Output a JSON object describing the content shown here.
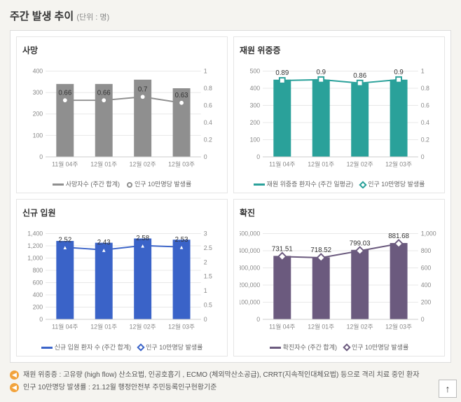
{
  "page": {
    "title": "주간 발생 추이",
    "unit": "(단위 : 명)"
  },
  "axis": {
    "categories": [
      "11월 04주",
      "12월 01주",
      "12월 02주",
      "12월 03주"
    ],
    "grid_color": "#e8e8e8",
    "axis_color": "#cccccc",
    "tick_font_size": 9,
    "tick_color": "#888888"
  },
  "panels": [
    {
      "key": "death",
      "title": "사망",
      "type": "bar+line",
      "bar_series_label": "사망자수 (주간 합계)",
      "line_series_label": "인구 10만명당 발생률",
      "categories": [
        "11월 04주",
        "12월 01주",
        "12월 02주",
        "12월 03주"
      ],
      "bar_values": [
        340,
        340,
        360,
        320
      ],
      "line_values": [
        0.66,
        0.66,
        0.7,
        0.63
      ],
      "line_labels": [
        "0.66",
        "0.66",
        "0.7",
        "0.63"
      ],
      "left_max": 400,
      "left_step": 100,
      "right_max": 1.0,
      "right_step": 0.2,
      "bar_color": "#8f8f8f",
      "line_color": "#8f8f8f",
      "marker_shape": "circle"
    },
    {
      "key": "severe",
      "title": "재원 위중증",
      "type": "bar+line",
      "bar_series_label": "재원 위중증 환자수 (주간 일평균)",
      "line_series_label": "인구 10만명당 발생률",
      "categories": [
        "11월 04주",
        "12월 01주",
        "12월 02주",
        "12월 03주"
      ],
      "bar_values": [
        450,
        450,
        430,
        450
      ],
      "line_values": [
        0.89,
        0.9,
        0.86,
        0.9
      ],
      "line_labels": [
        "0.89",
        "0.9",
        "0.86",
        "0.9"
      ],
      "left_max": 500,
      "left_step": 100,
      "right_max": 1.0,
      "right_step": 0.2,
      "bar_color": "#2aa19a",
      "line_color": "#2aa19a",
      "marker_shape": "square"
    },
    {
      "key": "admission",
      "title": "신규 입원",
      "type": "bar+line",
      "bar_series_label": "신규 입원 환자 수 (주간 합계)",
      "line_series_label": "인구 10만명당 발생률",
      "categories": [
        "11월 04주",
        "12월 01주",
        "12월 02주",
        "12월 03주"
      ],
      "bar_values": [
        1280,
        1250,
        1320,
        1300
      ],
      "line_values": [
        2.52,
        2.43,
        2.58,
        2.53
      ],
      "line_labels": [
        "2.52",
        "2.43",
        "2.58",
        "2.53"
      ],
      "left_max": 1400,
      "left_step": 200,
      "right_max": 3.0,
      "right_step": 0.5,
      "bar_color": "#3a63c8",
      "line_color": "#3a63c8",
      "marker_shape": "triangle"
    },
    {
      "key": "confirmed",
      "title": "확진",
      "type": "bar+line",
      "bar_series_label": "확진자수 (주간 합계)",
      "line_series_label": "인구 10만명당 발생률",
      "categories": [
        "11월 04주",
        "12월 01주",
        "12월 02주",
        "12월 03주"
      ],
      "bar_values": [
        370000,
        362000,
        405000,
        445000
      ],
      "line_values": [
        731.51,
        718.52,
        799.03,
        881.68
      ],
      "line_labels": [
        "731.51",
        "718.52",
        "799.03",
        "881.68"
      ],
      "left_max": 500000,
      "left_step": 100000,
      "right_max": 1000,
      "right_step": 200,
      "bar_color": "#6b5a7e",
      "line_color": "#6b5a7e",
      "marker_shape": "diamond"
    }
  ],
  "notes": [
    "재원 위중증 : 고유량 (high flow) 산소요법, 인공호흡기 , ECMO (체외막산소공급), CRRT(지속적인대체요법) 등으로 격리 치료 중인 환자",
    "인구 10만명당 발생률 : 21.12월 행정안전부 주민등록인구현황기준"
  ],
  "to_top": "↑"
}
